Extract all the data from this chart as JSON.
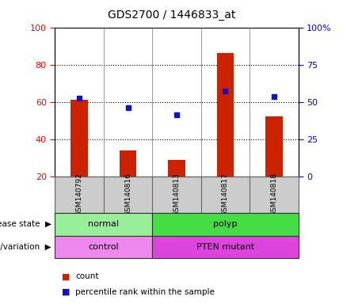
{
  "title": "GDS2700 / 1446833_at",
  "samples": [
    "GSM140792",
    "GSM140816",
    "GSM140813",
    "GSM140817",
    "GSM140818"
  ],
  "bar_values": [
    61,
    34,
    29,
    86,
    52
  ],
  "dot_values_left": [
    62,
    57,
    53,
    66,
    63
  ],
  "bar_bottom": 20,
  "left_ylim": [
    20,
    100
  ],
  "left_yticks": [
    20,
    40,
    60,
    80,
    100
  ],
  "right_ylim": [
    0,
    100
  ],
  "right_yticks": [
    0,
    25,
    50,
    75,
    100
  ],
  "right_yticklabels": [
    "0",
    "25",
    "50",
    "75",
    "100%"
  ],
  "bar_color": "#cc2200",
  "dot_color": "#1111cc",
  "disease_state": [
    {
      "label": "normal",
      "span": [
        0,
        2
      ],
      "color": "#99ee99"
    },
    {
      "label": "polyp",
      "span": [
        2,
        5
      ],
      "color": "#44dd44"
    }
  ],
  "genotype": [
    {
      "label": "control",
      "span": [
        0,
        2
      ],
      "color": "#ee88ee"
    },
    {
      "label": "PTEN mutant",
      "span": [
        2,
        5
      ],
      "color": "#dd44dd"
    }
  ],
  "disease_label": "disease state",
  "genotype_label": "genotype/variation",
  "legend_count": "count",
  "legend_percentile": "percentile rank within the sample",
  "sample_bg_color": "#cccccc",
  "sample_border_color": "#888888",
  "bar_width": 0.35
}
